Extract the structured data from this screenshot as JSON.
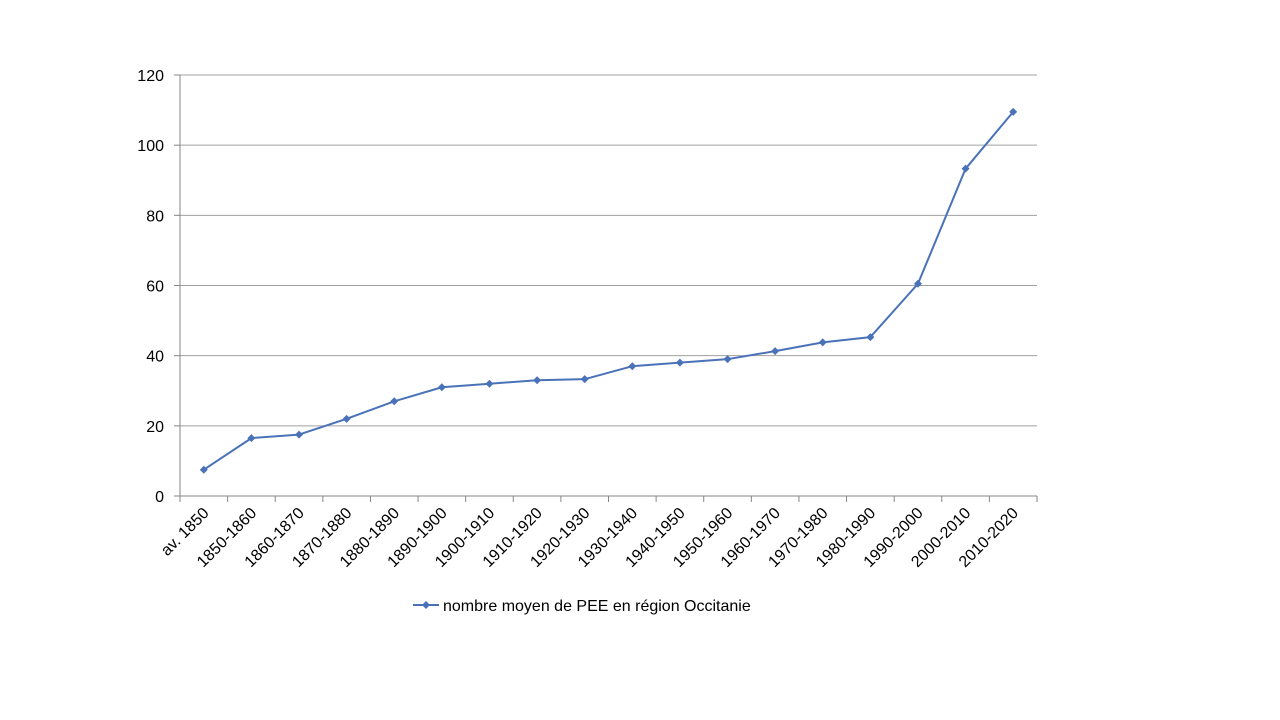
{
  "chart_data": {
    "type": "line",
    "categories": [
      "av. 1850",
      "1850-1860",
      "1860-1870",
      "1870-1880",
      "1880-1890",
      "1890-1900",
      "1900-1910",
      "1910-1920",
      "1920-1930",
      "1930-1940",
      "1940-1950",
      "1950-1960",
      "1960-1970",
      "1970-1980",
      "1980-1990",
      "1990-2000",
      "2000-2010",
      "2010-2020"
    ],
    "series": [
      {
        "name": "nombre moyen de PEE en région Occitanie",
        "values": [
          7.5,
          16.5,
          17.5,
          22,
          27,
          31,
          32,
          33,
          33.3,
          37,
          38,
          39,
          41.3,
          43.8,
          45.3,
          60.5,
          93.3,
          109.5
        ],
        "color": "#4a72b8",
        "marker": "diamond"
      }
    ],
    "title": "",
    "xlabel": "",
    "ylabel": "",
    "ylim": [
      0,
      120
    ],
    "yticks": [
      0,
      20,
      40,
      60,
      80,
      100,
      120
    ],
    "grid": "horizontal",
    "legend_position": "bottom",
    "gridline_color": "#a0a0a0",
    "axis_color": "#868686"
  }
}
